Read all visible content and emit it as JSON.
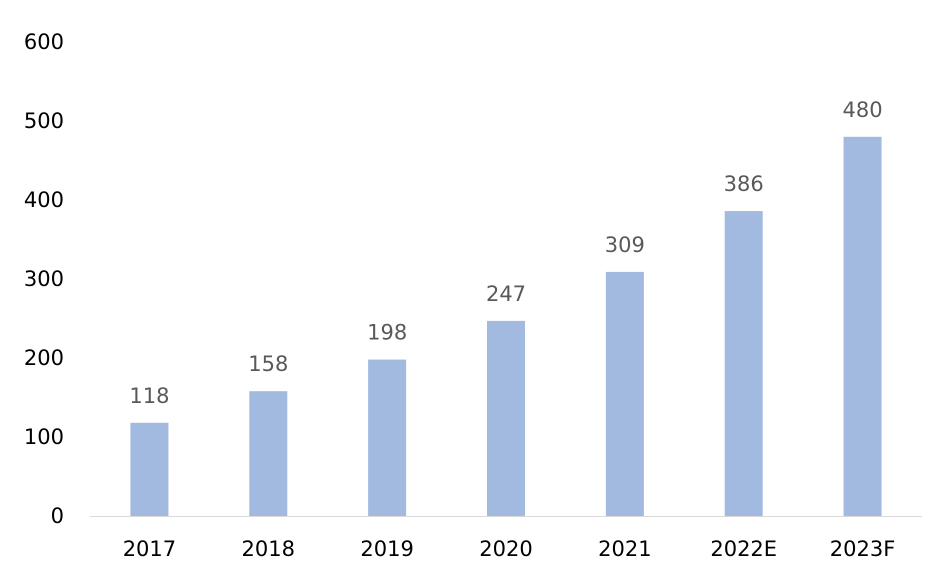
{
  "chart_data": {
    "type": "bar",
    "categories": [
      "2017",
      "2018",
      "2019",
      "2020",
      "2021",
      "2022E",
      "2023F"
    ],
    "values": [
      118,
      158,
      198,
      247,
      309,
      386,
      480
    ],
    "data_labels": [
      "118",
      "158",
      "198",
      "247",
      "309",
      "386",
      "480"
    ],
    "title": "",
    "xlabel": "",
    "ylabel": "",
    "ylim": [
      0,
      600
    ],
    "yticks": [
      "0",
      "100",
      "200",
      "300",
      "400",
      "500",
      "600"
    ],
    "grid": false,
    "legend": "none",
    "bar_color": "#a2b9e0",
    "label_color": "#595959",
    "axis_color": "#d9d9d9"
  }
}
